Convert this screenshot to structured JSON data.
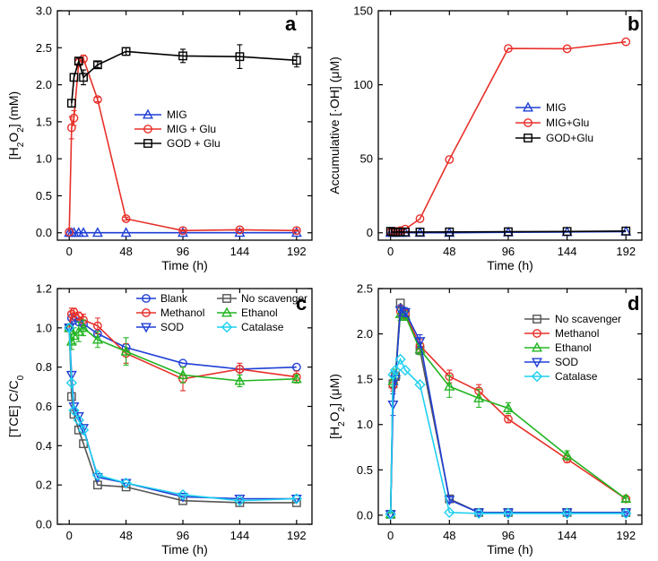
{
  "chart_data": [
    {
      "panel": "a",
      "type": "line",
      "xlabel": "Time (h)",
      "ylabel": "[H2O2] (mM)",
      "xlim": [
        -10,
        205
      ],
      "ylim": [
        -0.1,
        3.0
      ],
      "xticks": [
        0,
        48,
        96,
        144,
        192
      ],
      "yticks": [
        0.0,
        0.5,
        1.0,
        1.5,
        2.0,
        2.5,
        3.0
      ],
      "ytick_labels": [
        "0.0",
        "0.5",
        "1.0",
        "1.5",
        "2.0",
        "2.5",
        "3.0"
      ],
      "legend_position": "center-right",
      "series": [
        {
          "name": "MIG",
          "color": "#1f3fd6",
          "marker": "triangle-up",
          "x": [
            0,
            2,
            4,
            8,
            12,
            24,
            48,
            96,
            144,
            192
          ],
          "y": [
            0,
            0,
            0,
            0,
            0,
            0,
            0,
            0,
            0,
            0
          ]
        },
        {
          "name": "MIG + Glu",
          "color": "#e8302a",
          "marker": "circle",
          "x": [
            0,
            2,
            4,
            8,
            12,
            24,
            48,
            96,
            144,
            192
          ],
          "y": [
            0.01,
            1.42,
            1.55,
            2.3,
            2.35,
            1.8,
            0.19,
            0.03,
            0.04,
            0.03
          ],
          "err": [
            0,
            0.15,
            0.1,
            0.05,
            0.05,
            0.03,
            0.02,
            0.01,
            0.01,
            0.01
          ]
        },
        {
          "name": "GOD + Glu",
          "color": "#000000",
          "marker": "square",
          "x": [
            2,
            4,
            8,
            12,
            24,
            48,
            96,
            144,
            192
          ],
          "y": [
            1.75,
            2.1,
            2.32,
            2.1,
            2.27,
            2.45,
            2.39,
            2.38,
            2.33
          ],
          "err": [
            0.05,
            0.05,
            0.04,
            0.1,
            0.04,
            0.05,
            0.09,
            0.16,
            0.09
          ]
        }
      ]
    },
    {
      "panel": "b",
      "type": "line",
      "xlabel": "Time (h)",
      "ylabel": "Accumulative [·OH] (μM)",
      "xlim": [
        -10,
        205
      ],
      "ylim": [
        -5,
        150
      ],
      "xticks": [
        0,
        48,
        96,
        144,
        192
      ],
      "yticks": [
        0,
        50,
        100,
        150
      ],
      "ytick_labels": [
        "0",
        "50",
        "100",
        "150"
      ],
      "legend_position": "center-right",
      "series": [
        {
          "name": "MIG",
          "color": "#1f3fd6",
          "marker": "triangle-up",
          "x": [
            0,
            2,
            4,
            8,
            12,
            24,
            48,
            96,
            144,
            192
          ],
          "y": [
            0,
            0,
            0,
            0,
            0,
            0,
            0,
            0.3,
            0.5,
            0.8
          ]
        },
        {
          "name": "MIG+Glu",
          "color": "#e8302a",
          "marker": "circle",
          "x": [
            0,
            2,
            4,
            8,
            12,
            24,
            48,
            96,
            144,
            192
          ],
          "y": [
            0.5,
            0.8,
            1.0,
            1.5,
            2.5,
            9.5,
            49.5,
            124.5,
            124.3,
            129.0
          ]
        },
        {
          "name": "GOD+Glu",
          "color": "#000000",
          "marker": "square",
          "x": [
            0,
            2,
            4,
            8,
            12,
            24,
            48,
            96,
            144,
            192
          ],
          "y": [
            1.0,
            0.5,
            0.4,
            0.6,
            0.5,
            0.5,
            0.6,
            0.7,
            0.9,
            1.2
          ]
        }
      ]
    },
    {
      "panel": "c",
      "type": "line",
      "xlabel": "Time (h)",
      "ylabel": "[TCE] C/C0",
      "xlim": [
        -10,
        205
      ],
      "ylim": [
        0.0,
        1.2
      ],
      "xticks": [
        0,
        48,
        96,
        144,
        192
      ],
      "yticks": [
        0.0,
        0.2,
        0.4,
        0.6,
        0.8,
        1.0,
        1.2
      ],
      "ytick_labels": [
        "0.0",
        "0.2",
        "0.4",
        "0.6",
        "0.8",
        "1.0",
        "1.2"
      ],
      "legend_position": "top",
      "series": [
        {
          "name": "Blank",
          "color": "#1f3fd6",
          "marker": "circle",
          "x": [
            0,
            2,
            4,
            8,
            12,
            24,
            48,
            96,
            144,
            192
          ],
          "y": [
            1.0,
            1.05,
            1.04,
            1.03,
            1.02,
            0.97,
            0.9,
            0.82,
            0.79,
            0.8
          ]
        },
        {
          "name": "No scavenger",
          "color": "#555555",
          "marker": "square",
          "x": [
            0,
            2,
            4,
            8,
            12,
            24,
            48,
            96,
            144,
            192
          ],
          "y": [
            1.0,
            0.65,
            0.56,
            0.48,
            0.41,
            0.2,
            0.19,
            0.12,
            0.11,
            0.11
          ]
        },
        {
          "name": "Methanol",
          "color": "#e8302a",
          "marker": "circle",
          "x": [
            0,
            2,
            4,
            8,
            12,
            24,
            48,
            96,
            144,
            192
          ],
          "y": [
            1.0,
            1.07,
            1.08,
            1.06,
            1.04,
            1.01,
            0.87,
            0.74,
            0.79,
            0.75
          ],
          "err": [
            0,
            0.03,
            0.02,
            0.02,
            0.03,
            0.04,
            0.05,
            0.06,
            0.03,
            0.03
          ]
        },
        {
          "name": "Ethanol",
          "color": "#22b522",
          "marker": "triangle-up",
          "x": [
            0,
            2,
            4,
            8,
            12,
            24,
            48,
            96,
            144,
            192
          ],
          "y": [
            1.0,
            0.93,
            0.96,
            0.98,
            1.0,
            0.94,
            0.88,
            0.76,
            0.73,
            0.74
          ],
          "err": [
            0,
            0.04,
            0.04,
            0.05,
            0.04,
            0.04,
            0.07,
            0.04,
            0.03,
            0.02
          ]
        },
        {
          "name": "SOD",
          "color": "#1f3fd6",
          "marker": "triangle-down",
          "x": [
            0,
            2,
            4,
            8,
            12,
            24,
            48,
            96,
            144,
            192
          ],
          "y": [
            1.0,
            0.76,
            0.6,
            0.55,
            0.49,
            0.24,
            0.21,
            0.14,
            0.13,
            0.13
          ]
        },
        {
          "name": "Catalase",
          "color": "#1fd0f0",
          "marker": "diamond",
          "x": [
            0,
            2,
            4,
            8,
            12,
            24,
            48,
            96,
            144,
            192
          ],
          "y": [
            1.0,
            0.72,
            0.58,
            0.53,
            0.48,
            0.25,
            0.21,
            0.15,
            0.12,
            0.13
          ]
        }
      ]
    },
    {
      "panel": "d",
      "type": "line",
      "xlabel": "Time (h)",
      "ylabel": "[H2O2] (μM)",
      "xlim": [
        -10,
        205
      ],
      "ylim": [
        -0.1,
        2.5
      ],
      "xticks": [
        0,
        48,
        96,
        144,
        192
      ],
      "yticks": [
        0.0,
        0.5,
        1.0,
        1.5,
        2.0,
        2.5
      ],
      "ytick_labels": [
        "0.0",
        "0.5",
        "1.0",
        "1.5",
        "2.0",
        "2.5"
      ],
      "legend_position": "center-right",
      "series": [
        {
          "name": "No scavenger",
          "color": "#555555",
          "marker": "square",
          "x": [
            0,
            2,
            4,
            8,
            12,
            24,
            48,
            72,
            96,
            144,
            192
          ],
          "y": [
            0.01,
            1.45,
            1.53,
            2.34,
            2.22,
            1.82,
            0.18,
            0.03,
            0.03,
            0.03,
            0.03
          ]
        },
        {
          "name": "Methanol",
          "color": "#e8302a",
          "marker": "circle",
          "x": [
            0,
            2,
            4,
            8,
            12,
            24,
            48,
            72,
            96,
            144,
            192
          ],
          "y": [
            0.01,
            1.43,
            1.52,
            2.25,
            2.22,
            1.87,
            1.53,
            1.37,
            1.06,
            0.62,
            0.18
          ],
          "err": [
            0,
            0.06,
            0.06,
            0.06,
            0.05,
            0.07,
            0.07,
            0.07,
            0.04,
            0.04,
            0.03
          ]
        },
        {
          "name": "Ethanol",
          "color": "#22b522",
          "marker": "triangle-up",
          "x": [
            0,
            2,
            4,
            8,
            12,
            24,
            48,
            72,
            96,
            144,
            192
          ],
          "y": [
            0.01,
            1.48,
            1.55,
            2.22,
            2.2,
            1.83,
            1.42,
            1.29,
            1.18,
            0.66,
            0.18
          ],
          "err": [
            0,
            0.06,
            0.06,
            0.07,
            0.05,
            0.06,
            0.12,
            0.1,
            0.06,
            0.05,
            0.03
          ]
        },
        {
          "name": "SOD",
          "color": "#1f3fd6",
          "marker": "triangle-down",
          "x": [
            0,
            2,
            4,
            8,
            12,
            24,
            48,
            72,
            96,
            144,
            192
          ],
          "y": [
            0.01,
            1.22,
            1.5,
            2.26,
            2.24,
            1.92,
            0.17,
            0.03,
            0.03,
            0.03,
            0.03
          ],
          "err": [
            0,
            0.12,
            0.06,
            0.06,
            0.05,
            0.07,
            0.03,
            0.01,
            0.01,
            0.01,
            0.01
          ]
        },
        {
          "name": "Catalase",
          "color": "#1fd0f0",
          "marker": "diamond",
          "x": [
            0,
            2,
            4,
            8,
            12,
            24,
            48,
            72,
            96,
            144,
            192
          ],
          "y": [
            0.01,
            1.55,
            1.6,
            1.72,
            1.6,
            1.44,
            0.03,
            0.02,
            0.02,
            0.02,
            0.02
          ]
        }
      ]
    }
  ]
}
